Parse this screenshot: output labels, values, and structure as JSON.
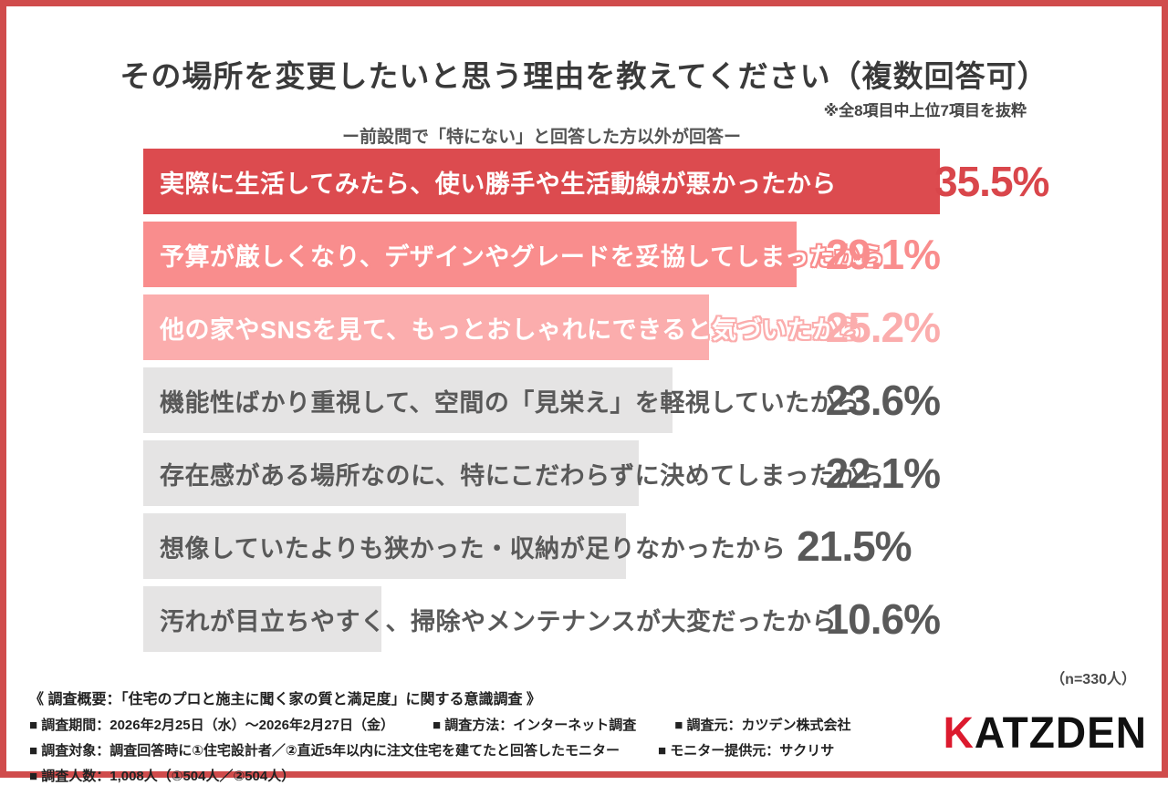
{
  "chart_data": {
    "type": "bar",
    "orientation": "horizontal",
    "title": "その場所を変更したいと思う理由を教えてください（複数回答可）",
    "note": "※全8項目中上位7項目を抜粋",
    "subtitle": "ー前設問で「特にない」と回答した方以外が回答ー",
    "unit": "%",
    "xlim": [
      0,
      35.5
    ],
    "grid": false,
    "legend": "none",
    "categories": [
      "実際に生活してみたら、使い勝手や生活動線が悪かったから",
      "予算が厳しくなり、デザインやグレードを妥協してしまったから",
      "他の家やSNSを見て、もっとおしゃれにできると気づいたから",
      "機能性ばかり重視して、空間の「見栄え」を軽視していたから",
      "存在感がある場所なのに、特にこだわらずに決めてしまったから",
      "想像していたよりも狭かった・収納が足りなかったから",
      "汚れが目立ちやすく、掃除やメンテナンスが大変だったから"
    ],
    "values": [
      35.5,
      29.1,
      25.2,
      23.6,
      22.1,
      21.5,
      10.6
    ],
    "value_labels": [
      "35.5%",
      "29.1%",
      "25.2%",
      "23.6%",
      "22.1%",
      "21.5%",
      "10.6%"
    ],
    "bar_colors": [
      "#dc4b4f",
      "#f98d8d",
      "#fbadad",
      "#e5e4e4",
      "#e5e4e4",
      "#e5e4e4",
      "#e5e4e4"
    ],
    "label_colors": [
      "#ffffff",
      "#ffffff",
      "#ffffff",
      "#595959",
      "#595959",
      "#595959",
      "#595959"
    ],
    "percent_colors": [
      "#d9464b",
      "#f98d8d",
      "#fbadad",
      "#595959",
      "#595959",
      "#595959",
      "#595959"
    ],
    "sample_note": "（n=330人）"
  },
  "footer": {
    "overview": "《 調査概要：「住宅のプロと施主に聞く家の質と満足度」に関する意識調査 》",
    "lines": [
      [
        "■ 調査期間：2026年2月25日（水）～2026年2月27日（金）",
        "■ 調査方法：インターネット調査",
        "■ 調査元：カツデン株式会社"
      ],
      [
        "■ 調査対象：調査回答時に①住宅設計者／②直近5年以内に注文住宅を建てたと回答したモニター",
        "■ モニター提供元：サクリサ"
      ],
      [
        "■ 調査人数：1,008人（①504人／②504人）"
      ]
    ]
  },
  "logo": {
    "text_k": "K",
    "text_rest": "ATZDEN",
    "k_color": "#dc1a2e",
    "rest_color": "#111111"
  },
  "frame_color": "#d04c4c"
}
